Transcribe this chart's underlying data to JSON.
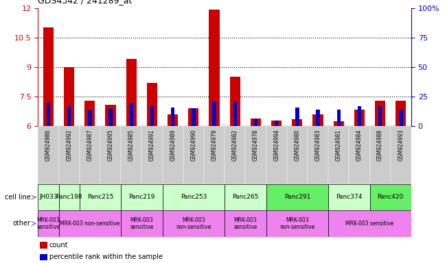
{
  "title": "GDS4342 / 241289_at",
  "gsm_labels": [
    "GSM924986",
    "GSM924992",
    "GSM924987",
    "GSM924995",
    "GSM924985",
    "GSM924991",
    "GSM924989",
    "GSM924990",
    "GSM924979",
    "GSM924982",
    "GSM924978",
    "GSM924994",
    "GSM924980",
    "GSM924983",
    "GSM924981",
    "GSM924984",
    "GSM924988",
    "GSM924993"
  ],
  "red_values": [
    11.0,
    9.0,
    7.3,
    7.1,
    9.4,
    8.2,
    6.6,
    6.9,
    11.9,
    8.5,
    6.4,
    6.3,
    6.35,
    6.6,
    6.25,
    6.85,
    7.3,
    7.3
  ],
  "blue_values_pct": [
    20,
    17,
    14,
    15,
    19,
    17,
    16,
    15,
    21,
    21,
    6,
    5,
    16,
    14,
    14,
    17,
    17,
    14
  ],
  "ylim_left": [
    6,
    12
  ],
  "ylim_right": [
    0,
    100
  ],
  "yticks_left": [
    6,
    7.5,
    9,
    10.5,
    12
  ],
  "yticks_right": [
    0,
    25,
    50,
    75,
    100
  ],
  "dotted_lines": [
    7.5,
    9,
    10.5
  ],
  "cell_lines": [
    {
      "label": "JH033",
      "start": 0,
      "end": 1,
      "color": "#ccffcc"
    },
    {
      "label": "Panc198",
      "start": 1,
      "end": 2,
      "color": "#ccffcc"
    },
    {
      "label": "Panc215",
      "start": 2,
      "end": 4,
      "color": "#ccffcc"
    },
    {
      "label": "Panc219",
      "start": 4,
      "end": 6,
      "color": "#ccffcc"
    },
    {
      "label": "Panc253",
      "start": 6,
      "end": 9,
      "color": "#ccffcc"
    },
    {
      "label": "Panc265",
      "start": 9,
      "end": 11,
      "color": "#ccffcc"
    },
    {
      "label": "Panc291",
      "start": 11,
      "end": 14,
      "color": "#66ee66"
    },
    {
      "label": "Panc374",
      "start": 14,
      "end": 16,
      "color": "#ccffcc"
    },
    {
      "label": "Panc420",
      "start": 16,
      "end": 18,
      "color": "#66ee66"
    }
  ],
  "other_lines": [
    {
      "label": "MRK-003\nsensitive",
      "start": 0,
      "end": 1,
      "color": "#ee82ee"
    },
    {
      "label": "MRK-003 non-sensitive",
      "start": 1,
      "end": 4,
      "color": "#ee82ee"
    },
    {
      "label": "MRK-003\nsensitive",
      "start": 4,
      "end": 6,
      "color": "#ee82ee"
    },
    {
      "label": "MRK-003\nnon-sensitive",
      "start": 6,
      "end": 9,
      "color": "#ee82ee"
    },
    {
      "label": "MRK-003\nsensitive",
      "start": 9,
      "end": 11,
      "color": "#ee82ee"
    },
    {
      "label": "MRK-003\nnon-sensitive",
      "start": 11,
      "end": 14,
      "color": "#ee82ee"
    },
    {
      "label": "MRK-003 sensitive",
      "start": 14,
      "end": 18,
      "color": "#ee82ee"
    }
  ],
  "bar_width": 0.5,
  "blue_bar_width": 0.18,
  "red_color": "#cc0000",
  "blue_color": "#0000cc",
  "tick_bg_color": "#cccccc",
  "left_spine_color": "#cc0000",
  "right_spine_color": "#0000cc"
}
